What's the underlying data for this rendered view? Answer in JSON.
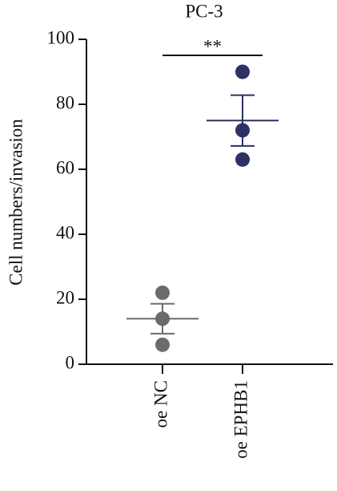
{
  "chart_data": {
    "type": "dot",
    "title": "PC-3",
    "ylabel": "Cell numbers/invasion",
    "categories": [
      "oe NC",
      "oe EPHB1"
    ],
    "points": [
      [
        22,
        14,
        6
      ],
      [
        90,
        72,
        63
      ]
    ],
    "means": [
      14,
      75
    ],
    "errors": [
      4.6,
      7.8
    ],
    "colors": [
      "#6b6b6b",
      "#2e3164"
    ],
    "ylim": [
      0,
      100
    ],
    "yticks": [
      0,
      20,
      40,
      60,
      80,
      100
    ],
    "significance": {
      "label": "**",
      "from": 0,
      "to": 1
    }
  }
}
